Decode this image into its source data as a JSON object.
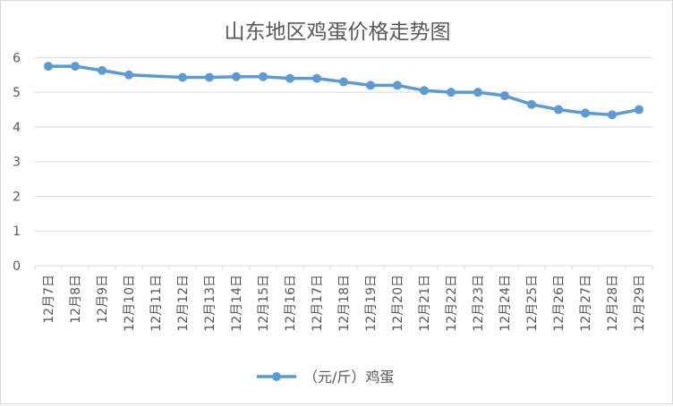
{
  "chart_data": {
    "type": "line",
    "title": "山东地区鸡蛋价格走势图",
    "categories": [
      "12月7日",
      "12月8日",
      "12月9日",
      "12月10日",
      "12月11日",
      "12月12日",
      "12月13日",
      "12月14日",
      "12月15日",
      "12月16日",
      "12月17日",
      "12月18日",
      "12月19日",
      "12月20日",
      "12月21日",
      "12月22日",
      "12月23日",
      "12月24日",
      "12月25日",
      "12月26日",
      "12月27日",
      "12月28日",
      "12月29日"
    ],
    "series": [
      {
        "name": "（元/斤）鸡蛋",
        "color": "#5b9bd5",
        "values": [
          5.75,
          5.75,
          5.63,
          5.5,
          null,
          5.43,
          5.43,
          5.45,
          5.45,
          5.4,
          5.4,
          5.3,
          5.2,
          5.2,
          5.05,
          5.0,
          5.0,
          4.9,
          4.65,
          4.5,
          4.4,
          4.35,
          4.5
        ]
      }
    ],
    "yticks": [
      0,
      1,
      2,
      3,
      4,
      5,
      6
    ],
    "ylim": [
      0,
      6.5
    ],
    "grid": true,
    "legend": "bottom",
    "gridColor": "#d9d9d9",
    "textColor": "#595959"
  }
}
